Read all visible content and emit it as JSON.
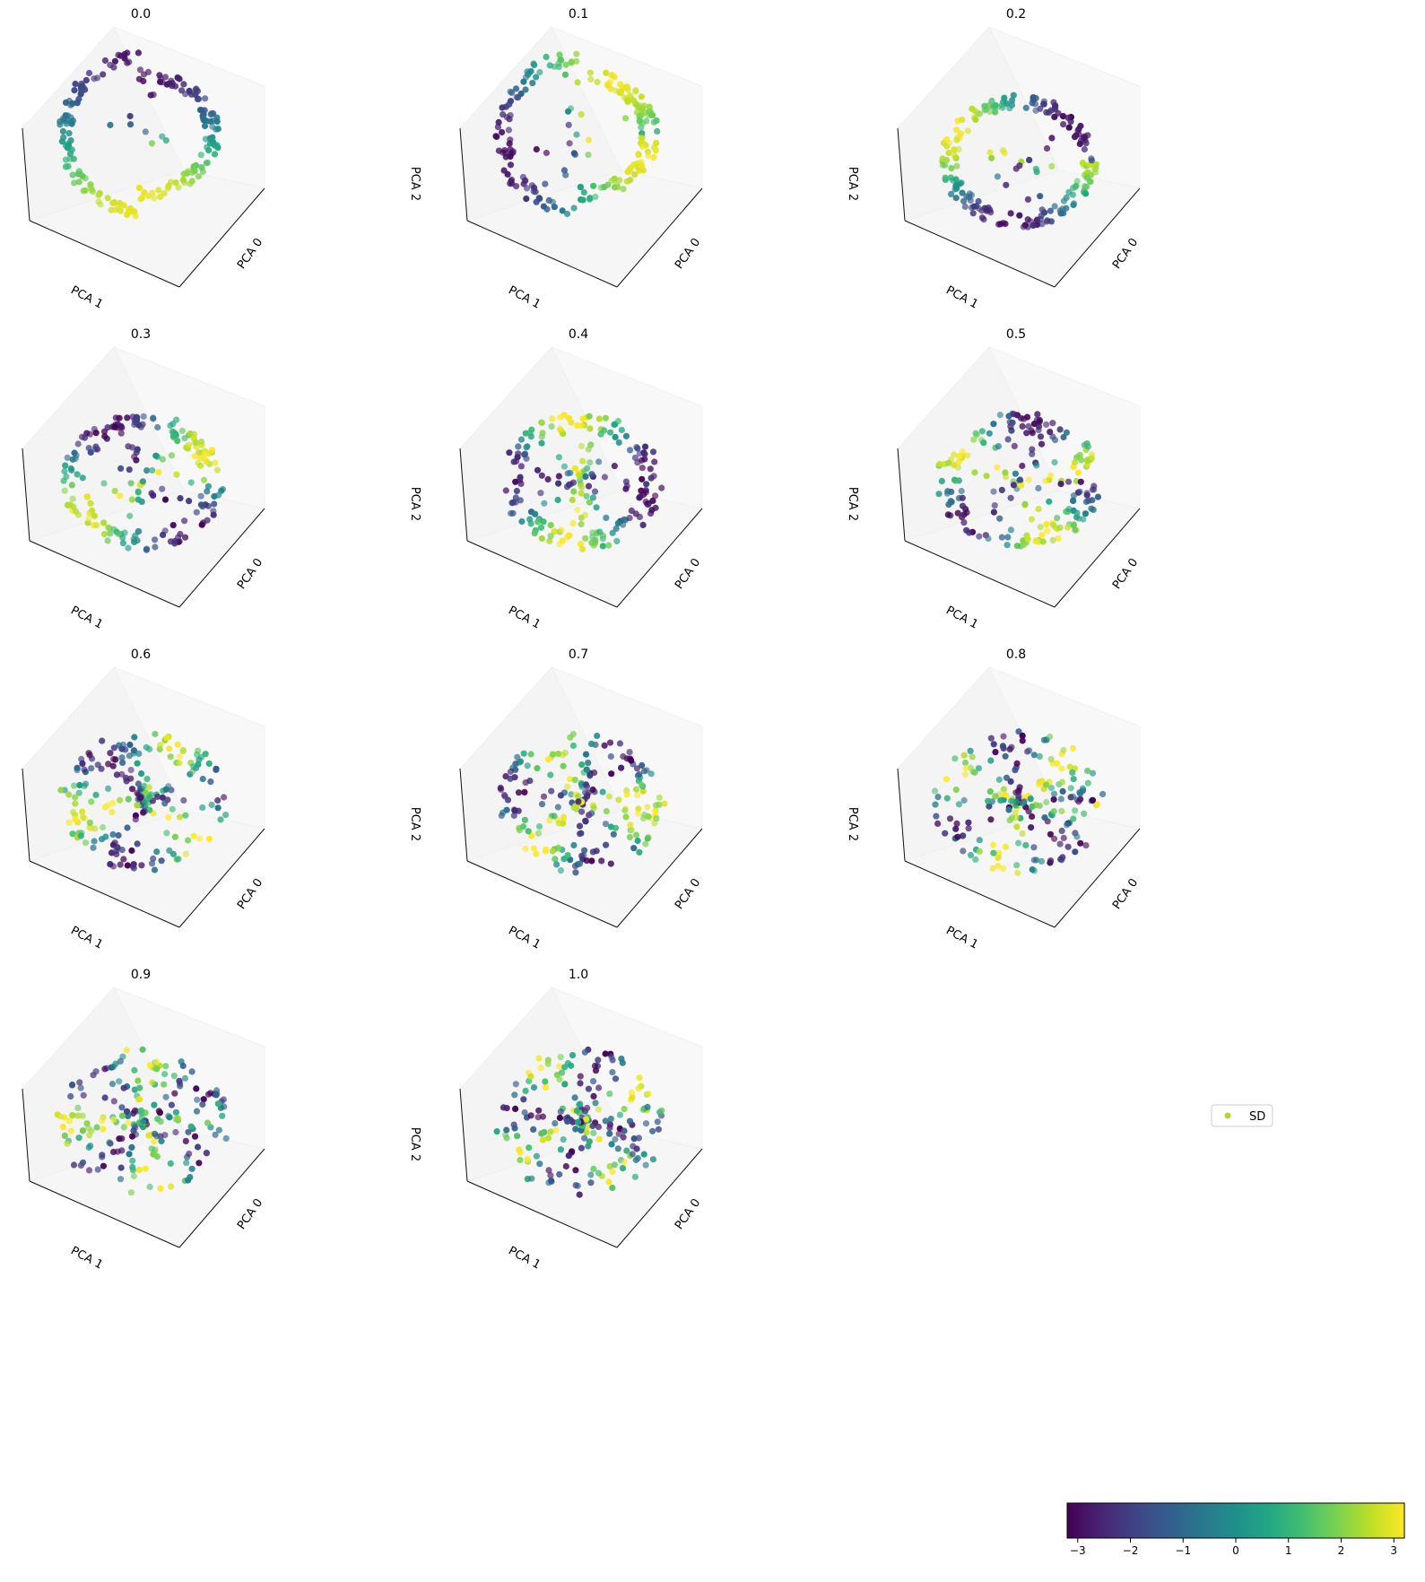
{
  "chart_data": {
    "type": "scatter",
    "projection": "3d",
    "axis_labels": {
      "x": "PCA 0",
      "y": "PCA 1",
      "z": "PCA 2"
    },
    "panels": [
      {
        "title": "0.0",
        "show_zlabel": false,
        "ring_radius": 1.0,
        "shape": "loop",
        "spread": 0.05,
        "interior": 0.05
      },
      {
        "title": "0.1",
        "show_zlabel": true,
        "ring_radius": 1.0,
        "shape": "loop",
        "spread": 0.06,
        "interior": 0.08
      },
      {
        "title": "0.2",
        "show_zlabel": true,
        "ring_radius": 1.0,
        "shape": "ring",
        "spread": 0.06,
        "interior": 0.1
      },
      {
        "title": "0.3",
        "show_zlabel": false,
        "ring_radius": 1.0,
        "shape": "ring",
        "spread": 0.08,
        "interior": 0.2
      },
      {
        "title": "0.4",
        "show_zlabel": true,
        "ring_radius": 1.0,
        "shape": "ring",
        "spread": 0.08,
        "interior": 0.22
      },
      {
        "title": "0.5",
        "show_zlabel": true,
        "ring_radius": 1.0,
        "shape": "ring",
        "spread": 0.09,
        "interior": 0.25
      },
      {
        "title": "0.6",
        "show_zlabel": false,
        "ring_radius": 1.0,
        "shape": "ring",
        "spread": 0.1,
        "interior": 0.35
      },
      {
        "title": "0.7",
        "show_zlabel": true,
        "ring_radius": 1.0,
        "shape": "ring",
        "spread": 0.1,
        "interior": 0.38
      },
      {
        "title": "0.8",
        "show_zlabel": true,
        "ring_radius": 1.0,
        "shape": "ring",
        "spread": 0.11,
        "interior": 0.42
      },
      {
        "title": "0.9",
        "show_zlabel": false,
        "ring_radius": 1.0,
        "shape": "ring",
        "spread": 0.12,
        "interior": 0.48
      },
      {
        "title": "1.0",
        "show_zlabel": true,
        "ring_radius": 1.0,
        "shape": "ring",
        "spread": 0.12,
        "interior": 0.5
      }
    ],
    "colorbar": {
      "colormap": "viridis",
      "range": [
        -3.2,
        3.2
      ],
      "ticks": [
        -3,
        -2,
        -1,
        0,
        1,
        2,
        3
      ],
      "tick_labels": [
        "−3",
        "−2",
        "−1",
        "0",
        "1",
        "2",
        "3"
      ]
    },
    "legend": {
      "label": "SD",
      "color": "#b5d334",
      "placement": "upper-right"
    }
  }
}
